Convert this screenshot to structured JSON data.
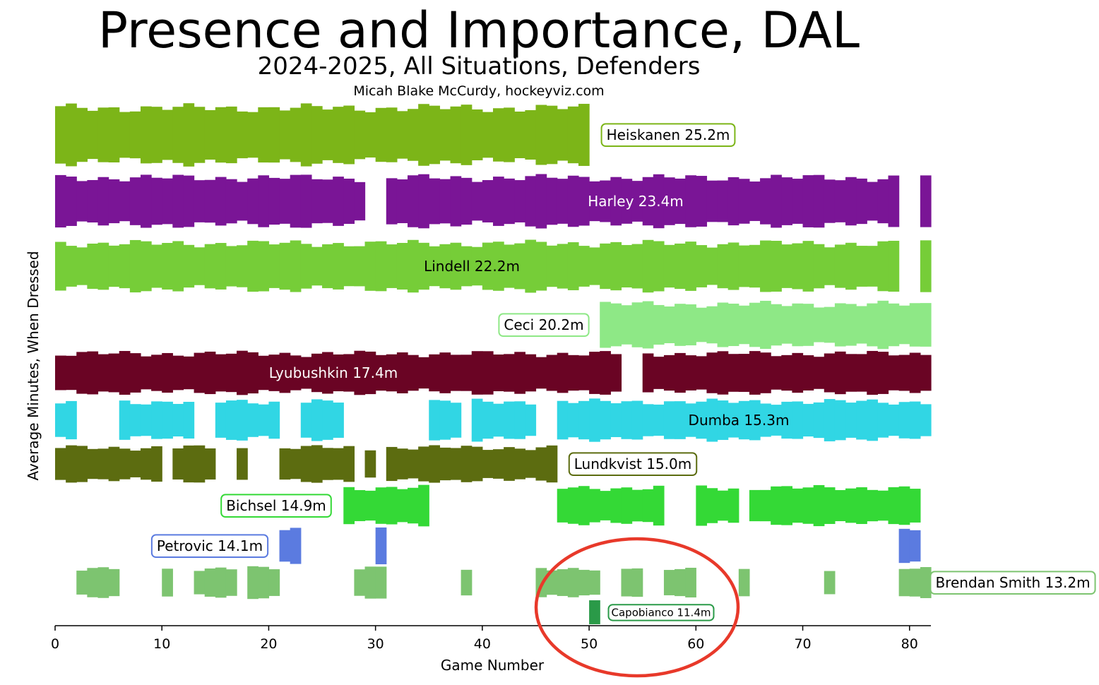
{
  "title": "Presence and Importance, DAL",
  "subtitle": "2024-2025, All Situations, Defenders",
  "credit": "Micah Blake McCurdy, hockeyviz.com",
  "chart_data": {
    "type": "area",
    "xlabel": "Game Number",
    "ylabel": "Average Minutes, When Dressed",
    "xlim": [
      0,
      82
    ],
    "xticks": [
      0,
      10,
      20,
      30,
      40,
      50,
      60,
      70,
      80
    ],
    "grid": false,
    "series": [
      {
        "name": "Heiskanen",
        "label": "Heiskanen 25.2m",
        "avg_minutes": 25.2,
        "color": "#7cb518",
        "label_style": "box",
        "label_text_color": "#000000",
        "segments": [
          [
            0,
            50
          ]
        ]
      },
      {
        "name": "Harley",
        "label": "Harley 23.4m",
        "avg_minutes": 23.4,
        "color": "#7a1596",
        "label_style": "inside",
        "label_text_color": "#ffffff",
        "segments": [
          [
            0,
            29
          ],
          [
            31,
            79
          ],
          [
            81,
            82
          ]
        ]
      },
      {
        "name": "Lindell",
        "label": "Lindell 22.2m",
        "avg_minutes": 22.2,
        "color": "#76cd38",
        "label_style": "inside",
        "label_text_color": "#000000",
        "segments": [
          [
            0,
            79
          ],
          [
            81,
            82
          ]
        ]
      },
      {
        "name": "Ceci",
        "label": "Ceci 20.2m",
        "avg_minutes": 20.2,
        "color": "#8ee886",
        "label_style": "box",
        "label_text_color": "#000000",
        "segments": [
          [
            51,
            82
          ]
        ]
      },
      {
        "name": "Lyubushkin",
        "label": "Lyubushkin 17.4m",
        "avg_minutes": 17.4,
        "color": "#6a0424",
        "label_style": "inside",
        "label_text_color": "#ffffff",
        "segments": [
          [
            0,
            53
          ],
          [
            55,
            82
          ]
        ]
      },
      {
        "name": "Dumba",
        "label": "Dumba 15.3m",
        "avg_minutes": 15.3,
        "color": "#31d6e4",
        "label_style": "inside",
        "label_text_color": "#000000",
        "segments": [
          [
            0,
            2
          ],
          [
            6,
            13
          ],
          [
            15,
            21
          ],
          [
            23,
            27
          ],
          [
            35,
            38
          ],
          [
            39,
            45
          ],
          [
            47,
            82
          ]
        ]
      },
      {
        "name": "Lundkvist",
        "label": "Lundkvist 15.0m",
        "avg_minutes": 15.0,
        "color": "#5c6c10",
        "label_style": "box",
        "label_text_color": "#000000",
        "segments": [
          [
            0,
            10
          ],
          [
            11,
            15
          ],
          [
            17,
            18
          ],
          [
            21,
            28
          ],
          [
            29,
            30
          ],
          [
            31,
            47
          ]
        ]
      },
      {
        "name": "Bichsel",
        "label": "Bichsel 14.9m",
        "avg_minutes": 14.9,
        "color": "#34d936",
        "label_style": "box",
        "label_text_color": "#000000",
        "segments": [
          [
            27,
            35
          ],
          [
            47,
            57
          ],
          [
            60,
            64
          ],
          [
            65,
            81
          ]
        ]
      },
      {
        "name": "Petrovic",
        "label": "Petrovic 14.1m",
        "avg_minutes": 14.1,
        "color": "#5b7be0",
        "label_style": "box",
        "label_text_color": "#000000",
        "segments": [
          [
            21,
            23
          ],
          [
            30,
            31
          ],
          [
            79,
            81
          ]
        ]
      },
      {
        "name": "Brendan Smith",
        "label": "Brendan Smith 13.2m",
        "avg_minutes": 13.2,
        "color": "#7dc470",
        "label_style": "box",
        "label_text_color": "#000000",
        "segments": [
          [
            2,
            6
          ],
          [
            10,
            11
          ],
          [
            13,
            17
          ],
          [
            18,
            21
          ],
          [
            28,
            31
          ],
          [
            38,
            39
          ],
          [
            45,
            51
          ],
          [
            53,
            55
          ],
          [
            57,
            60
          ],
          [
            64,
            65
          ],
          [
            72,
            73
          ],
          [
            79,
            82
          ]
        ]
      },
      {
        "name": "Capobianco",
        "label": "Capobianco 11.4m",
        "avg_minutes": 11.4,
        "color": "#2a9a48",
        "label_style": "box-small",
        "label_text_color": "#000000",
        "segments": [
          [
            50,
            51
          ]
        ]
      }
    ]
  },
  "annotation": {
    "shape": "ellipse",
    "color": "#e8392a"
  }
}
